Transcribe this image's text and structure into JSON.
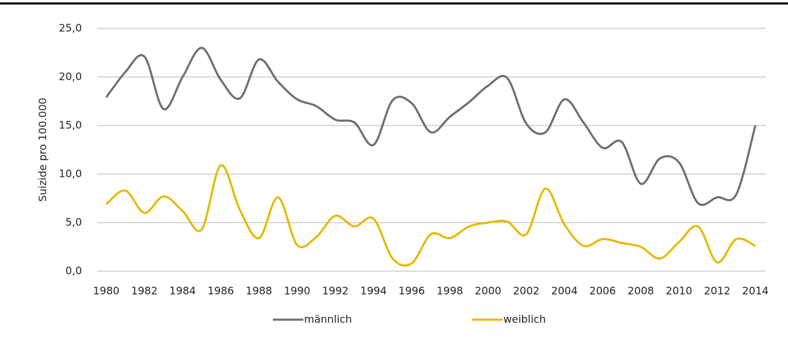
{
  "chart_data": {
    "type": "line",
    "y_label": "Suizide pro 100.000",
    "x": [
      1980,
      1981,
      1982,
      1983,
      1984,
      1985,
      1986,
      1987,
      1988,
      1989,
      1990,
      1991,
      1992,
      1993,
      1994,
      1995,
      1996,
      1997,
      1998,
      1999,
      2000,
      2001,
      2002,
      2003,
      2004,
      2005,
      2006,
      2007,
      2008,
      2009,
      2010,
      2011,
      2012,
      2013,
      2014
    ],
    "xlim": [
      1980,
      2014
    ],
    "xticks": [
      1980,
      1982,
      1984,
      1986,
      1988,
      1990,
      1992,
      1994,
      1996,
      1998,
      2000,
      2002,
      2004,
      2006,
      2008,
      2010,
      2012,
      2014
    ],
    "ylim": [
      0,
      25
    ],
    "yticks": [
      {
        "value": 0,
        "label": "0,0"
      },
      {
        "value": 5,
        "label": "5,0"
      },
      {
        "value": 10,
        "label": "10,0"
      },
      {
        "value": 15,
        "label": "15,0"
      },
      {
        "value": 20,
        "label": "20,0"
      },
      {
        "value": 25,
        "label": "25,0"
      }
    ],
    "grid": true,
    "legend": "bottom",
    "series": [
      {
        "name": "männlich",
        "color": "#6b706c",
        "values": [
          17.9,
          20.5,
          22.1,
          16.7,
          20.0,
          23.0,
          19.7,
          17.8,
          21.8,
          19.5,
          17.7,
          17.0,
          15.6,
          15.3,
          13.0,
          17.6,
          17.3,
          14.3,
          15.9,
          17.4,
          19.1,
          19.9,
          15.2,
          14.3,
          17.7,
          15.3,
          12.7,
          13.3,
          9.0,
          11.6,
          11.2,
          7.0,
          7.6,
          7.9,
          15.0
        ]
      },
      {
        "name": "weiblich",
        "color": "#e6b800",
        "values": [
          6.9,
          8.3,
          6.0,
          7.7,
          6.2,
          4.3,
          10.9,
          6.3,
          3.4,
          7.6,
          2.7,
          3.5,
          5.7,
          4.6,
          5.4,
          1.3,
          0.8,
          3.8,
          3.4,
          4.6,
          5.0,
          5.1,
          3.8,
          8.5,
          4.8,
          2.6,
          3.3,
          2.9,
          2.5,
          1.3,
          3.0,
          4.6,
          0.9,
          3.3,
          2.6
        ]
      }
    ]
  }
}
